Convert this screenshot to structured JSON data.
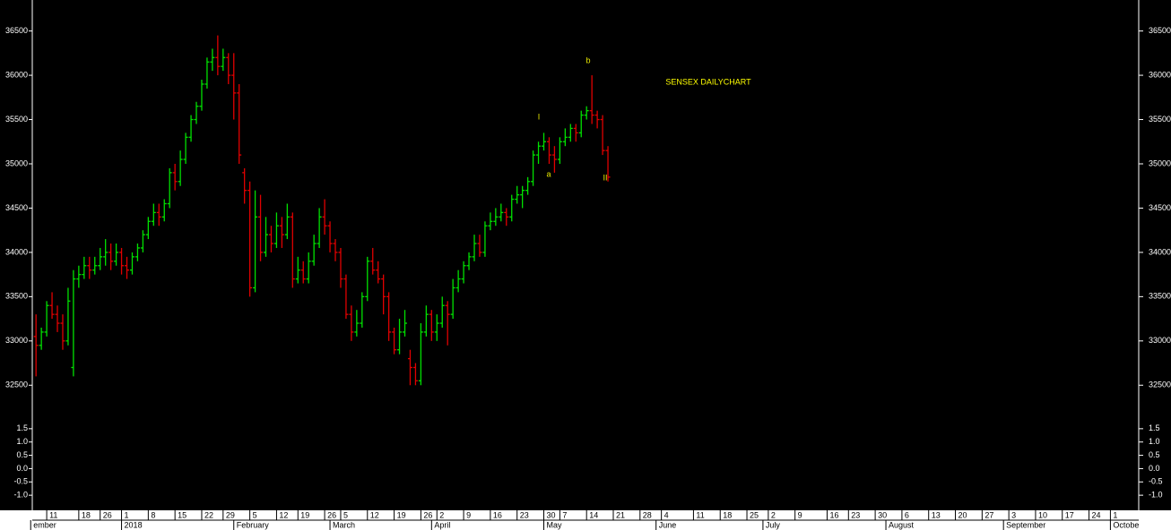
{
  "chart_data": {
    "type": "ohlc",
    "title": "SENSEX DAILYCHART",
    "annotations": [
      "b",
      "I",
      "a",
      "II"
    ],
    "up_color": "#00e000",
    "down_color": "#e00000",
    "ohlc": [
      [
        33050,
        33300,
        32600,
        32950
      ],
      [
        32950,
        33150,
        32900,
        33100
      ],
      [
        33100,
        33450,
        33050,
        33400
      ],
      [
        33400,
        33550,
        33250,
        33300
      ],
      [
        33300,
        33400,
        33100,
        33200
      ],
      [
        33200,
        33300,
        32900,
        33000
      ],
      [
        33000,
        33600,
        32950,
        33450
      ],
      [
        32700,
        33800,
        32600,
        33700
      ],
      [
        33700,
        33850,
        33600,
        33750
      ],
      [
        33750,
        33950,
        33700,
        33850
      ],
      [
        33850,
        33950,
        33700,
        33800
      ],
      [
        33800,
        33950,
        33750,
        33850
      ],
      [
        33850,
        34050,
        33800,
        33950
      ],
      [
        33950,
        34150,
        33850,
        34000
      ],
      [
        34000,
        34100,
        33800,
        33900
      ],
      [
        33900,
        34100,
        33850,
        34000
      ],
      [
        34000,
        34050,
        33750,
        33850
      ],
      [
        33850,
        33950,
        33700,
        33800
      ],
      [
        33800,
        34000,
        33750,
        33950
      ],
      [
        33950,
        34100,
        33900,
        34050
      ],
      [
        34050,
        34250,
        34000,
        34200
      ],
      [
        34200,
        34400,
        34150,
        34350
      ],
      [
        34350,
        34550,
        34300,
        34450
      ],
      [
        34450,
        34550,
        34300,
        34400
      ],
      [
        34400,
        34600,
        34350,
        34550
      ],
      [
        34550,
        34950,
        34500,
        34900
      ],
      [
        34900,
        35000,
        34700,
        34800
      ],
      [
        34800,
        35150,
        34750,
        35050
      ],
      [
        35050,
        35350,
        35000,
        35300
      ],
      [
        35300,
        35550,
        35250,
        35500
      ],
      [
        35500,
        35700,
        35450,
        35650
      ],
      [
        35650,
        35950,
        35600,
        35900
      ],
      [
        35900,
        36200,
        35850,
        36150
      ],
      [
        36150,
        36300,
        36050,
        36200
      ],
      [
        36200,
        36450,
        36000,
        36100
      ],
      [
        36100,
        36300,
        36050,
        36200
      ],
      [
        36200,
        36250,
        35900,
        36000
      ],
      [
        36000,
        36250,
        35500,
        35800
      ],
      [
        35800,
        35900,
        35000,
        35100
      ],
      [
        34900,
        34950,
        34550,
        34700
      ],
      [
        34700,
        34800,
        33500,
        33600
      ],
      [
        33600,
        34700,
        33550,
        34400
      ],
      [
        34400,
        34650,
        33900,
        34000
      ],
      [
        34000,
        34400,
        33950,
        34200
      ],
      [
        34200,
        34300,
        34000,
        34100
      ],
      [
        34100,
        34450,
        34050,
        34300
      ],
      [
        34300,
        34400,
        34050,
        34200
      ],
      [
        34200,
        34550,
        34150,
        34400
      ],
      [
        34400,
        34450,
        33600,
        33700
      ],
      [
        33700,
        33950,
        33650,
        33800
      ],
      [
        33800,
        33900,
        33650,
        33700
      ],
      [
        33700,
        34000,
        33650,
        33900
      ],
      [
        33900,
        34200,
        33850,
        34100
      ],
      [
        34100,
        34500,
        34050,
        34400
      ],
      [
        34400,
        34600,
        34200,
        34300
      ],
      [
        34300,
        34350,
        34000,
        34100
      ],
      [
        34100,
        34150,
        33900,
        34000
      ],
      [
        34000,
        34050,
        33600,
        33700
      ],
      [
        33700,
        33750,
        33250,
        33300
      ],
      [
        33300,
        33400,
        33000,
        33100
      ],
      [
        33100,
        33350,
        33050,
        33200
      ],
      [
        33200,
        33550,
        33150,
        33500
      ],
      [
        33500,
        33950,
        33450,
        33900
      ],
      [
        33900,
        34050,
        33750,
        33800
      ],
      [
        33800,
        33900,
        33650,
        33700
      ],
      [
        33700,
        33750,
        33300,
        33500
      ],
      [
        33500,
        33550,
        33000,
        33100
      ],
      [
        33100,
        33150,
        32850,
        32900
      ],
      [
        32900,
        33250,
        32850,
        33100
      ],
      [
        33100,
        33350,
        33050,
        33200
      ],
      [
        32800,
        32900,
        32500,
        32700
      ],
      [
        32700,
        32750,
        32500,
        32550
      ],
      [
        32550,
        33200,
        32500,
        33100
      ],
      [
        33100,
        33400,
        33050,
        33300
      ],
      [
        33300,
        33350,
        33000,
        33100
      ],
      [
        33100,
        33300,
        33000,
        33200
      ],
      [
        33200,
        33500,
        33150,
        33400
      ],
      [
        33400,
        33450,
        32950,
        33300
      ],
      [
        33300,
        33700,
        33250,
        33600
      ],
      [
        33600,
        33800,
        33550,
        33700
      ],
      [
        33700,
        33900,
        33650,
        33850
      ],
      [
        33850,
        34000,
        33800,
        33950
      ],
      [
        33950,
        34200,
        33900,
        34100
      ],
      [
        34100,
        34200,
        33950,
        34000
      ],
      [
        34000,
        34350,
        33950,
        34300
      ],
      [
        34300,
        34450,
        34250,
        34350
      ],
      [
        34350,
        34500,
        34300,
        34400
      ],
      [
        34400,
        34550,
        34350,
        34450
      ],
      [
        34450,
        34500,
        34300,
        34400
      ],
      [
        34400,
        34650,
        34350,
        34600
      ],
      [
        34600,
        34750,
        34550,
        34650
      ],
      [
        34650,
        34750,
        34500,
        34700
      ],
      [
        34700,
        34850,
        34650,
        34800
      ],
      [
        34800,
        35150,
        34750,
        35100
      ],
      [
        35100,
        35250,
        35000,
        35200
      ],
      [
        35200,
        35350,
        35150,
        35250
      ],
      [
        35250,
        35300,
        35000,
        35100
      ],
      [
        35100,
        35200,
        34900,
        35050
      ],
      [
        35050,
        35300,
        35000,
        35250
      ],
      [
        35250,
        35400,
        35200,
        35300
      ],
      [
        35300,
        35450,
        35250,
        35400
      ],
      [
        35400,
        35450,
        35250,
        35350
      ],
      [
        35350,
        35600,
        35300,
        35550
      ],
      [
        35550,
        35650,
        35500,
        35600
      ],
      [
        35600,
        36000,
        35450,
        35550
      ],
      [
        35550,
        35600,
        35400,
        35500
      ],
      [
        35500,
        35550,
        35100,
        35150
      ],
      [
        35150,
        35200,
        34800,
        34850
      ]
    ],
    "xlim": [
      -0.7,
      206.3
    ],
    "xticks": [
      {
        "value": 2,
        "label": "11"
      },
      {
        "value": 8,
        "label": "18"
      },
      {
        "value": 12,
        "label": "26"
      },
      {
        "value": 16,
        "label": "1"
      },
      {
        "value": 21,
        "label": "8"
      },
      {
        "value": 26,
        "label": "15"
      },
      {
        "value": 31,
        "label": "22"
      },
      {
        "value": 35,
        "label": "29"
      },
      {
        "value": 40,
        "label": "5"
      },
      {
        "value": 45,
        "label": "12"
      },
      {
        "value": 49,
        "label": "19"
      },
      {
        "value": 54,
        "label": "26"
      },
      {
        "value": 57,
        "label": "5"
      },
      {
        "value": 62,
        "label": "12"
      },
      {
        "value": 67,
        "label": "19"
      },
      {
        "value": 72,
        "label": "26"
      },
      {
        "value": 75,
        "label": "2"
      },
      {
        "value": 80,
        "label": "9"
      },
      {
        "value": 85,
        "label": "16"
      },
      {
        "value": 90,
        "label": "23"
      },
      {
        "value": 95,
        "label": "30"
      },
      {
        "value": 98,
        "label": "7"
      },
      {
        "value": 103,
        "label": "14"
      },
      {
        "value": 108,
        "label": "21"
      },
      {
        "value": 113,
        "label": "28"
      },
      {
        "value": 117,
        "label": "4"
      },
      {
        "value": 123,
        "label": "11"
      },
      {
        "value": 128,
        "label": "18"
      },
      {
        "value": 133,
        "label": "25"
      },
      {
        "value": 137,
        "label": "2"
      },
      {
        "value": 142,
        "label": "9"
      },
      {
        "value": 148,
        "label": "16"
      },
      {
        "value": 152,
        "label": "23"
      },
      {
        "value": 157,
        "label": "30"
      },
      {
        "value": 162,
        "label": "6"
      },
      {
        "value": 167,
        "label": "13"
      },
      {
        "value": 172,
        "label": "20"
      },
      {
        "value": 177,
        "label": "27"
      },
      {
        "value": 182,
        "label": "3"
      },
      {
        "value": 187,
        "label": "10"
      },
      {
        "value": 192,
        "label": "17"
      },
      {
        "value": 197,
        "label": "24"
      },
      {
        "value": 201,
        "label": "1"
      }
    ],
    "month_ticks": [
      {
        "value": -1,
        "label": "ember"
      },
      {
        "value": 16,
        "label": "2018"
      },
      {
        "value": 37,
        "label": "February"
      },
      {
        "value": 55,
        "label": "March"
      },
      {
        "value": 74,
        "label": "April"
      },
      {
        "value": 95,
        "label": "May"
      },
      {
        "value": 116,
        "label": "June"
      },
      {
        "value": 136,
        "label": "July"
      },
      {
        "value": 159,
        "label": "August"
      },
      {
        "value": 181,
        "label": "September"
      },
      {
        "value": 201,
        "label": "Octobe"
      }
    ],
    "ylim": [
      32250,
      36850
    ],
    "yticks": [
      32500,
      33000,
      33500,
      34000,
      34500,
      35000,
      35500,
      36000,
      36500
    ],
    "indicator": {
      "ylim": [
        -1.5,
        2.0
      ],
      "yticks": [
        1.5,
        {
          "value": 1,
          "label": "1.0"
        },
        0.5,
        {
          "value": 0,
          "label": "0.0"
        },
        -0.5,
        {
          "value": -1,
          "label": "-1.0"
        }
      ]
    }
  }
}
